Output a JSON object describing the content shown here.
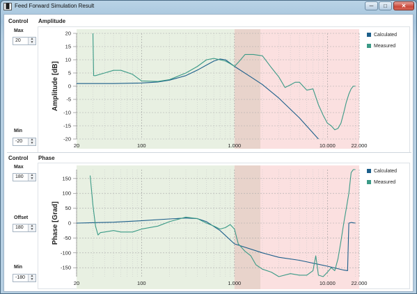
{
  "window": {
    "title": "Feed Forward Simulation Result",
    "app_icon": "bars-icon",
    "buttons": {
      "minimize": "─",
      "maximize": "□",
      "close": "✕"
    }
  },
  "amplitude_section": {
    "control_title": "Control",
    "chart_title": "Amplitude",
    "max_label": "Max",
    "max_value": "20",
    "min_label": "Min",
    "min_value": "-20"
  },
  "phase_section": {
    "control_title": "Control",
    "chart_title": "Phase",
    "max_label": "Max",
    "max_value": "180",
    "offset_label": "Offset",
    "offset_value": "180",
    "min_label": "Min",
    "min_value": "-180"
  },
  "colors": {
    "calculated": "#1b5e8a",
    "measured": "#3a9a86",
    "green_zone": "#e8f0e2",
    "red_zone": "#fbe0e0",
    "overlap_zone": "#e8d3cb"
  },
  "chart_data": [
    {
      "type": "line",
      "title": "",
      "ylabel": "Amplitude [dB]",
      "xlabel": "",
      "x_scale": "log",
      "xlim": [
        20,
        22000
      ],
      "ylim": [
        -20,
        20
      ],
      "x_ticks": [
        20,
        100,
        1000,
        10000,
        22000
      ],
      "x_tick_labels": [
        "20",
        "100",
        "1.000",
        "10.000",
        "22.000"
      ],
      "y_ticks": [
        20,
        15,
        10,
        5,
        0,
        -5,
        -10,
        -15,
        -20
      ],
      "y_tick_labels": [
        "20",
        "15",
        "10",
        "5",
        "0",
        "-5",
        "-10",
        "-15",
        "-20"
      ],
      "grid": true,
      "legend_position": "right",
      "zones": [
        {
          "x0": 20,
          "x1": 1000,
          "color": "green"
        },
        {
          "x0": 1000,
          "x1": 1900,
          "color": "overlap"
        },
        {
          "x0": 1900,
          "x1": 22000,
          "color": "red"
        }
      ],
      "series": [
        {
          "name": "Calculated",
          "x": [
            20,
            50,
            100,
            150,
            200,
            300,
            400,
            500,
            600,
            700,
            800,
            900,
            1000,
            1500,
            2000,
            3000,
            5000,
            8000
          ],
          "y": [
            1,
            1,
            1.2,
            1.6,
            2.3,
            4,
            6.1,
            8,
            9.5,
            10.3,
            10,
            8.7,
            7.5,
            3.5,
            0.6,
            -4.5,
            -12,
            -20
          ]
        },
        {
          "name": "Measured",
          "x": [
            30,
            30.5,
            32,
            40,
            50,
            60,
            80,
            100,
            150,
            200,
            300,
            400,
            500,
            600,
            700,
            800,
            900,
            1000,
            1100,
            1300,
            1600,
            2000,
            2500,
            3000,
            3500,
            4000,
            4500,
            5000,
            6000,
            7000,
            8000,
            9000,
            10000,
            11000,
            12000,
            13000,
            14000,
            15000,
            16000,
            17000,
            18000,
            19000,
            20000
          ],
          "y": [
            20,
            4,
            4,
            5,
            6,
            6,
            4.5,
            2,
            1.8,
            2.5,
            5,
            7.5,
            10,
            10.5,
            10,
            9.5,
            8.5,
            7.5,
            9,
            12,
            12,
            11.5,
            7,
            3.5,
            -0.5,
            0.5,
            1.5,
            1.5,
            -1.5,
            -1,
            -7,
            -11,
            -14,
            -15,
            -16.5,
            -16,
            -14,
            -10,
            -6,
            -3,
            -1,
            0,
            0
          ]
        }
      ]
    },
    {
      "type": "line",
      "title": "",
      "ylabel": "Phase [Grad]",
      "xlabel": "",
      "x_scale": "log",
      "xlim": [
        20,
        22000
      ],
      "ylim": [
        -180,
        180
      ],
      "x_ticks": [
        20,
        100,
        1000,
        10000,
        22000
      ],
      "x_tick_labels": [
        "20",
        "100",
        "1.000",
        "10.000",
        "22.000"
      ],
      "y_ticks": [
        150,
        100,
        50,
        0,
        -50,
        -100,
        -150
      ],
      "y_tick_labels": [
        "150",
        "100",
        "50",
        "0",
        "-50",
        "-100",
        "-150"
      ],
      "grid": true,
      "legend_position": "right",
      "zones": [
        {
          "x0": 20,
          "x1": 1000,
          "color": "green"
        },
        {
          "x0": 1000,
          "x1": 1900,
          "color": "overlap"
        },
        {
          "x0": 1900,
          "x1": 22000,
          "color": "red"
        }
      ],
      "series": [
        {
          "name": "Calculated",
          "x": [
            20,
            50,
            100,
            200,
            300,
            400,
            500,
            700,
            1000,
            2000,
            3000,
            5000,
            10000,
            15000,
            16500,
            17000,
            18000,
            20000
          ],
          "y": [
            0,
            3,
            8,
            14,
            17,
            15,
            5,
            -25,
            -70,
            -100,
            -115,
            -125,
            -145,
            -158,
            -160,
            0,
            2,
            0
          ]
        },
        {
          "name": "Measured",
          "x": [
            28,
            30,
            32,
            34,
            36,
            40,
            50,
            60,
            80,
            100,
            150,
            200,
            300,
            400,
            500,
            600,
            700,
            800,
            900,
            1000,
            1100,
            1300,
            1500,
            1700,
            2000,
            2500,
            3000,
            4000,
            5000,
            6000,
            7000,
            7500,
            8000,
            9000,
            10000,
            11000,
            12000,
            13000,
            14000,
            15000,
            16000,
            17000,
            18000,
            19000,
            20000
          ],
          "y": [
            160,
            60,
            -10,
            -40,
            -32,
            -30,
            -25,
            -30,
            -30,
            -20,
            -10,
            5,
            20,
            15,
            0,
            -10,
            -20,
            -15,
            -5,
            -20,
            -70,
            -95,
            -110,
            -140,
            -155,
            -165,
            -180,
            -170,
            -175,
            -175,
            -160,
            -110,
            -175,
            -180,
            -165,
            -150,
            -160,
            -120,
            -60,
            0,
            50,
            100,
            170,
            180,
            180
          ]
        }
      ]
    }
  ]
}
